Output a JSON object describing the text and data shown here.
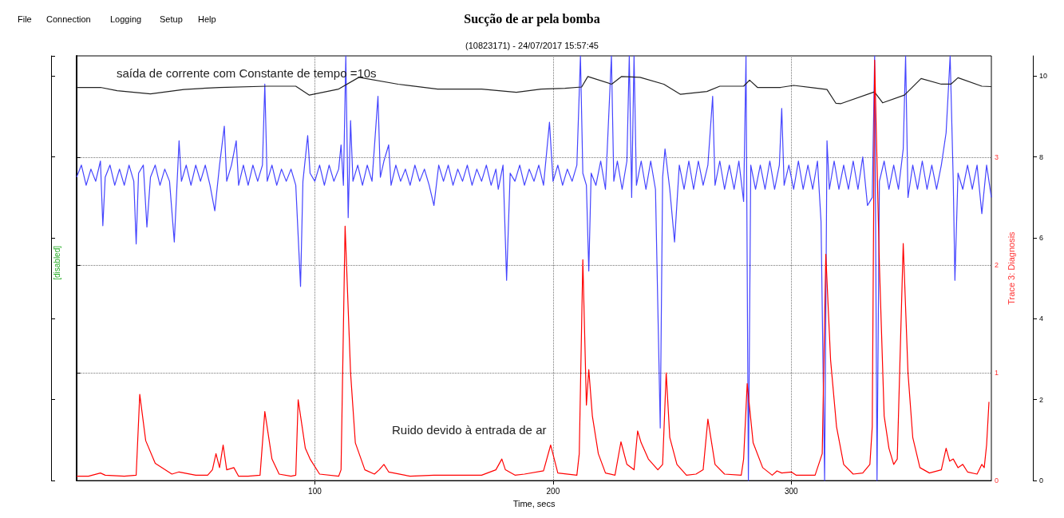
{
  "chart_data": {
    "type": "line",
    "title": "Sucção de ar pela bomba",
    "subtitle": "(10823171) - 24/07/2017 15:57:45",
    "xlabel": "Time, secs",
    "ylabel": "Trace 3: Diagnosis",
    "annotations": [
      "File",
      "Connection",
      "Logging",
      "Setup",
      "Help",
      "[disabled]",
      "saída de corrente com Constante de tempo =10s",
      "Ruido devido à entrada de ar"
    ],
    "xlim": [
      0,
      384
    ],
    "xticks": [
      100,
      200,
      300
    ],
    "ylim": [
      0,
      3.94
    ],
    "yticks": [
      0,
      1,
      2,
      3
    ],
    "y2lim": [
      0,
      10.5
    ],
    "y2ticks": [
      0,
      2,
      4,
      6,
      8,
      10
    ],
    "grid": true,
    "marker": "none",
    "line_style": "solid",
    "series": [
      {
        "color": "#4444ff",
        "axis": "y2",
        "x": [
          0,
          2,
          4,
          6,
          8,
          10,
          11,
          12,
          14,
          16,
          18,
          20,
          22,
          24,
          25,
          26,
          28,
          29.5,
          31,
          33,
          35,
          37,
          39,
          41,
          43,
          44,
          46,
          48,
          50,
          52,
          54,
          56,
          58,
          60,
          62,
          63,
          65,
          67,
          68,
          70,
          72,
          74,
          76,
          78,
          79,
          80,
          82,
          84,
          86,
          88,
          90,
          92,
          94,
          95,
          97,
          98,
          100,
          102,
          104,
          106,
          108,
          110,
          111,
          112,
          113,
          114,
          115,
          116,
          118,
          120,
          122,
          124,
          126.5,
          127.5,
          129,
          131,
          132,
          134,
          136,
          138,
          140,
          142,
          144,
          146,
          148,
          150,
          152,
          154,
          156,
          158,
          160,
          162,
          164,
          166,
          168,
          170,
          172,
          174,
          176,
          177,
          179,
          180.5,
          182,
          184,
          186,
          188,
          190,
          192,
          194,
          196,
          198.5,
          200,
          202,
          204,
          206,
          208,
          210,
          211.5,
          212.5,
          214,
          215,
          216,
          218,
          220,
          222,
          224.5,
          225.5,
          227,
          229,
          231,
          232,
          233,
          234,
          235,
          237,
          239,
          241,
          243,
          245,
          246,
          247,
          249,
          251,
          253,
          255,
          257,
          259,
          261,
          263,
          265,
          267,
          268,
          270,
          272,
          274,
          276,
          278,
          280,
          281,
          282,
          283,
          285,
          287,
          289,
          291,
          293,
          295,
          296,
          297,
          299,
          301,
          303,
          305,
          307,
          309,
          311,
          312.5,
          314,
          315,
          316,
          318,
          320,
          322,
          324,
          326,
          328,
          330,
          332,
          334,
          335,
          336,
          337,
          339,
          341,
          343,
          345,
          347,
          348,
          349,
          351,
          353,
          355,
          357,
          359,
          361,
          363,
          365,
          366.7,
          368,
          368.7,
          370,
          372,
          374,
          376,
          378,
          380,
          382,
          384
        ],
        "values": [
          7.5,
          7.8,
          7.3,
          7.7,
          7.4,
          7.9,
          6.3,
          7.5,
          7.8,
          7.3,
          7.7,
          7.3,
          7.8,
          7.4,
          5.85,
          7.6,
          7.8,
          6.27,
          7.5,
          7.8,
          7.3,
          7.7,
          7.4,
          5.9,
          8.4,
          7.4,
          7.8,
          7.3,
          7.8,
          7.4,
          7.8,
          7.3,
          6.67,
          7.8,
          8.76,
          7.4,
          7.8,
          8.4,
          7.3,
          7.8,
          7.3,
          7.8,
          7.4,
          7.8,
          9.8,
          7.4,
          7.8,
          7.3,
          7.7,
          7.4,
          7.7,
          7.3,
          4.8,
          7.4,
          8.53,
          7.6,
          7.4,
          7.8,
          7.3,
          7.8,
          7.4,
          7.7,
          8.3,
          7.3,
          10.5,
          6.5,
          8.9,
          7.4,
          7.8,
          7.3,
          7.8,
          7.4,
          9.5,
          7.5,
          7.9,
          8.3,
          7.3,
          7.8,
          7.4,
          7.7,
          7.3,
          7.8,
          7.4,
          7.7,
          7.3,
          6.8,
          7.8,
          7.4,
          7.8,
          7.3,
          7.7,
          7.4,
          7.8,
          7.3,
          7.7,
          7.4,
          7.8,
          7.3,
          7.7,
          7.2,
          7.8,
          4.95,
          7.6,
          7.4,
          7.8,
          7.3,
          7.7,
          7.4,
          7.8,
          7.3,
          8.86,
          7.4,
          7.8,
          7.3,
          7.7,
          7.4,
          7.8,
          10.5,
          7.6,
          7.3,
          5.18,
          7.6,
          7.3,
          7.9,
          7.2,
          10.5,
          7.4,
          7.9,
          7.2,
          7.9,
          10.5,
          7.0,
          10.5,
          7.3,
          7.9,
          7.2,
          7.9,
          7.2,
          1.3,
          7.5,
          8.2,
          7.2,
          5.9,
          7.8,
          7.2,
          7.9,
          7.2,
          7.9,
          7.3,
          7.8,
          9.5,
          7.3,
          7.9,
          7.2,
          7.8,
          7.2,
          7.9,
          6.9,
          10.5,
          0,
          7.8,
          7.2,
          7.8,
          7.2,
          7.9,
          7.2,
          7.8,
          9.2,
          7.3,
          7.8,
          7.2,
          7.9,
          7.2,
          7.8,
          7.2,
          7.9,
          6.4,
          0,
          8.4,
          7.2,
          7.9,
          7.2,
          7.8,
          7.2,
          7.9,
          7.2,
          8.0,
          6.8,
          7.0,
          10.5,
          0,
          7.4,
          7.9,
          7.2,
          7.8,
          7.2,
          8.2,
          10.5,
          7.0,
          7.8,
          7.2,
          7.9,
          7.2,
          7.8,
          7.2,
          7.8,
          8.6,
          10.5,
          7.4,
          4.95,
          7.6,
          7.2,
          7.8,
          7.2,
          7.8,
          6.6,
          7.8,
          7.0
        ]
      },
      {
        "color": "#222222",
        "axis": "y2",
        "x": [
          0,
          10,
          17,
          31,
          45,
          60,
          80,
          92,
          97.7,
          110,
          118.5,
          135,
          151.5,
          170,
          184.6,
          195,
          205,
          212,
          214.6,
          224.6,
          228.8,
          236.5,
          246.5,
          253.5,
          264.6,
          270,
          280,
          282.5,
          285.8,
          295.5,
          301,
          315,
          318.7,
          320.9,
          334.9,
          338.4,
          347.5,
          354.5,
          363,
          367,
          370,
          380,
          384
        ],
        "values": [
          9.72,
          9.72,
          9.64,
          9.56,
          9.67,
          9.72,
          9.75,
          9.75,
          9.53,
          9.68,
          9.97,
          9.8,
          9.68,
          9.68,
          9.6,
          9.68,
          9.7,
          9.73,
          9.99,
          9.8,
          9.99,
          9.97,
          9.8,
          9.55,
          9.62,
          9.75,
          9.75,
          9.9,
          9.72,
          9.72,
          9.77,
          9.67,
          9.33,
          9.32,
          9.61,
          9.34,
          9.53,
          9.94,
          9.8,
          9.8,
          9.96,
          9.75,
          9.74
        ]
      },
      {
        "color": "#ff0000",
        "axis": "y",
        "x": [
          0,
          5,
          10,
          12,
          20,
          25,
          26.5,
          29,
          33,
          40,
          43,
          50,
          55,
          57,
          58.5,
          60,
          61.5,
          63,
          66,
          68,
          72,
          77,
          79,
          82,
          85,
          90,
          92,
          93,
          96,
          98,
          102,
          110,
          111,
          112.7,
          115,
          117,
          121,
          125,
          127,
          129,
          131,
          140,
          150,
          160,
          170,
          176,
          178.5,
          180,
          184,
          188,
          196,
          199,
          202,
          210,
          211,
          212.5,
          214,
          215,
          216.5,
          219,
          222,
          226,
          228.5,
          231,
          234,
          235.5,
          237,
          240,
          244,
          246,
          247.5,
          249,
          252,
          256,
          260,
          263,
          265,
          268,
          272,
          279,
          280,
          281.5,
          284,
          288,
          292,
          294,
          296,
          300,
          302,
          310,
          313,
          314.5,
          316.5,
          319,
          322,
          326,
          330,
          333,
          334,
          335,
          337,
          339,
          341,
          343,
          344.5,
          347,
          349,
          351,
          354,
          358,
          363,
          365,
          366.5,
          368,
          370,
          372,
          374,
          378,
          380,
          381,
          382,
          383
        ],
        "values": [
          0.04,
          0.04,
          0.07,
          0.05,
          0.04,
          0.05,
          0.8,
          0.37,
          0.16,
          0.06,
          0.08,
          0.05,
          0.05,
          0.1,
          0.25,
          0.12,
          0.33,
          0.1,
          0.12,
          0.04,
          0.04,
          0.05,
          0.64,
          0.2,
          0.06,
          0.04,
          0.05,
          0.75,
          0.3,
          0.2,
          0.06,
          0.04,
          0.1,
          2.36,
          1.0,
          0.35,
          0.1,
          0.06,
          0.1,
          0.15,
          0.08,
          0.04,
          0.05,
          0.05,
          0.05,
          0.1,
          0.2,
          0.1,
          0.05,
          0.06,
          0.09,
          0.33,
          0.07,
          0.05,
          0.25,
          2.05,
          0.7,
          1.03,
          0.6,
          0.25,
          0.07,
          0.05,
          0.36,
          0.15,
          0.1,
          0.46,
          0.35,
          0.2,
          0.1,
          0.15,
          1.0,
          0.4,
          0.15,
          0.05,
          0.06,
          0.1,
          0.57,
          0.15,
          0.06,
          0.05,
          0.2,
          0.9,
          0.35,
          0.12,
          0.05,
          0.09,
          0.07,
          0.08,
          0.05,
          0.05,
          0.25,
          2.1,
          1.12,
          0.5,
          0.15,
          0.06,
          0.07,
          0.15,
          0.5,
          3.9,
          2.0,
          0.6,
          0.3,
          0.15,
          0.2,
          2.2,
          1.0,
          0.4,
          0.12,
          0.07,
          0.1,
          0.3,
          0.18,
          0.2,
          0.12,
          0.15,
          0.08,
          0.06,
          0.15,
          0.12,
          0.33,
          0.73
        ]
      }
    ]
  }
}
